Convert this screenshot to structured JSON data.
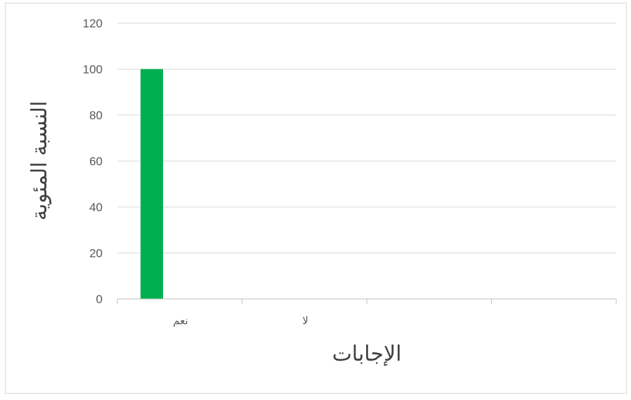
{
  "chart_data": {
    "type": "bar",
    "title": "",
    "categories": [
      "نعم",
      "لا",
      "",
      ""
    ],
    "values": [
      100,
      0,
      null,
      null
    ],
    "xlabel": "الإجابات",
    "ylabel": "النسبة المئوية",
    "ylim": [
      0,
      120
    ],
    "yticks": [
      0,
      20,
      40,
      60,
      80,
      100,
      120
    ],
    "grid": true,
    "legend": "none",
    "bar_color": "#00b050",
    "grid_color": "#d9d9d9",
    "axis_color": "#bfbfbf",
    "text_color": "#595959"
  }
}
